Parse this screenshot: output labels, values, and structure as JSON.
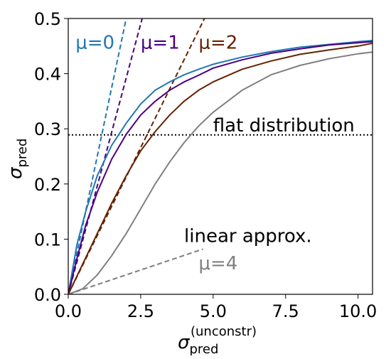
{
  "chart_data": {
    "type": "line",
    "title": "",
    "xlabel": {
      "base": "σ",
      "sub": "pred",
      "sup": "(unconstr)"
    },
    "ylabel": {
      "base": "σ",
      "sub": "pred"
    },
    "xlim": [
      0,
      10.5
    ],
    "ylim": [
      0,
      0.5
    ],
    "xticks": [
      0,
      2.5,
      5,
      7.5,
      10
    ],
    "xtick_labels": [
      "0.0",
      "2.5",
      "5.0",
      "7.5",
      "10.0"
    ],
    "yticks": [
      0,
      0.1,
      0.2,
      0.3,
      0.4,
      0.5
    ],
    "ytick_labels": [
      "0.0",
      "0.1",
      "0.2",
      "0.3",
      "0.4",
      "0.5"
    ],
    "grid": false,
    "series": [
      {
        "name": "μ=0",
        "color": "#1f77b4",
        "x": [
          0,
          0.3,
          0.6,
          1,
          1.5,
          2,
          2.5,
          3,
          3.5,
          4,
          4.5,
          5,
          6,
          7,
          8,
          9,
          10,
          10.5
        ],
        "y": [
          0,
          0.09,
          0.15,
          0.215,
          0.27,
          0.31,
          0.345,
          0.37,
          0.385,
          0.398,
          0.408,
          0.417,
          0.43,
          0.44,
          0.448,
          0.453,
          0.458,
          0.46
        ]
      },
      {
        "name": "μ=1",
        "color": "#4b0082",
        "x": [
          0,
          0.3,
          0.6,
          1,
          1.5,
          2,
          2.5,
          3,
          3.5,
          4,
          4.5,
          5,
          6,
          7,
          8,
          9,
          10,
          10.5
        ],
        "y": [
          0,
          0.065,
          0.125,
          0.185,
          0.245,
          0.29,
          0.325,
          0.35,
          0.37,
          0.385,
          0.397,
          0.41,
          0.425,
          0.437,
          0.445,
          0.452,
          0.456,
          0.458
        ]
      },
      {
        "name": "μ=2",
        "color": "#662200",
        "x": [
          0,
          0.5,
          1,
          1.5,
          2,
          2.5,
          3,
          3.5,
          4,
          4.5,
          5,
          6,
          7,
          8,
          9,
          10,
          10.5
        ],
        "y": [
          0,
          0.055,
          0.11,
          0.165,
          0.215,
          0.26,
          0.295,
          0.325,
          0.35,
          0.37,
          0.385,
          0.408,
          0.423,
          0.435,
          0.443,
          0.45,
          0.455
        ]
      },
      {
        "name": "μ=4",
        "color": "#808080",
        "x": [
          0,
          0.5,
          1,
          1.5,
          2,
          2.5,
          3,
          3.5,
          4,
          4.5,
          5,
          5.5,
          6,
          7,
          8,
          9,
          10,
          10.5
        ],
        "y": [
          0,
          0.01,
          0.035,
          0.07,
          0.11,
          0.155,
          0.2,
          0.24,
          0.275,
          0.305,
          0.33,
          0.35,
          0.37,
          0.398,
          0.415,
          0.427,
          0.436,
          0.439
        ]
      }
    ],
    "linear_approx": [
      {
        "name": "μ=0",
        "color": "#1f77b4",
        "x": [
          0,
          2.0
        ],
        "y": [
          0,
          0.5
        ]
      },
      {
        "name": "μ=1",
        "color": "#4b0082",
        "x": [
          0,
          2.55
        ],
        "y": [
          0,
          0.5
        ]
      },
      {
        "name": "μ=2",
        "color": "#662200",
        "x": [
          0,
          4.7
        ],
        "y": [
          0,
          0.5
        ]
      },
      {
        "name": "μ=4",
        "color": "#808080",
        "x": [
          0,
          4.65
        ],
        "y": [
          0,
          0.082
        ]
      }
    ],
    "reference_line": {
      "y": 0.289,
      "style": "dotted",
      "color": "#000000"
    },
    "annotations": [
      {
        "text": "μ=0",
        "color": "#1f77b4",
        "x": 0.25,
        "y": 0.445
      },
      {
        "text": "μ=1",
        "color": "#4b0082",
        "x": 2.5,
        "y": 0.445
      },
      {
        "text": "μ=2",
        "color": "#662200",
        "x": 4.5,
        "y": 0.445
      },
      {
        "text": "flat distribution",
        "color": "#000000",
        "x": 5.0,
        "y": 0.295
      },
      {
        "text": "linear approx.",
        "color": "#000000",
        "x": 4.0,
        "y": 0.095
      },
      {
        "text": "μ=4",
        "color": "#808080",
        "x": 4.5,
        "y": 0.045
      }
    ]
  }
}
